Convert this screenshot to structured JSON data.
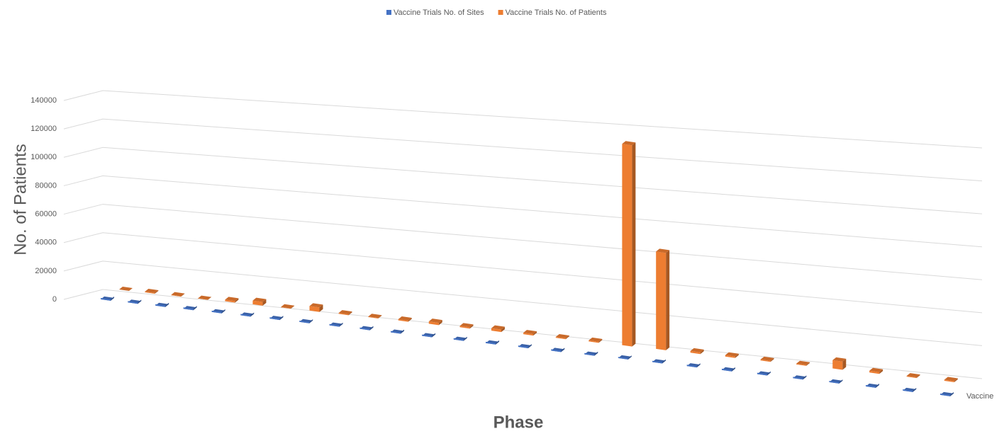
{
  "chart_data": {
    "type": "bar3d",
    "xlabel": "Phase",
    "ylabel": "No. of Patients",
    "depth_label": "Vaccine",
    "categories": [
      null,
      null,
      null,
      null,
      null,
      null,
      null,
      null,
      null,
      null,
      null,
      null,
      null,
      null,
      null,
      null,
      null,
      null,
      null,
      null,
      null,
      null,
      null,
      null,
      null,
      null,
      null
    ],
    "series": [
      {
        "name": "Vaccine Trials No. of Sites",
        "color": "#4472c4",
        "values": [
          40,
          30,
          50,
          40,
          60,
          80,
          40,
          70,
          50,
          40,
          60,
          60,
          50,
          70,
          60,
          50,
          60,
          150,
          100,
          50,
          60,
          50,
          40,
          90,
          60,
          40,
          50
        ]
      },
      {
        "name": "Vaccine Trials No. of Patients",
        "color": "#ed7d31",
        "values": [
          1000,
          1500,
          1200,
          800,
          2000,
          3500,
          1200,
          4000,
          1500,
          1300,
          1700,
          2500,
          1800,
          2600,
          1900,
          1500,
          1600,
          130000,
          63000,
          2000,
          1800,
          1500,
          1400,
          6000,
          2000,
          1300,
          1500
        ]
      }
    ],
    "ylim": [
      0,
      140000
    ],
    "yticks": [
      0,
      20000,
      40000,
      60000,
      80000,
      100000,
      120000,
      140000
    ],
    "grid": true
  }
}
